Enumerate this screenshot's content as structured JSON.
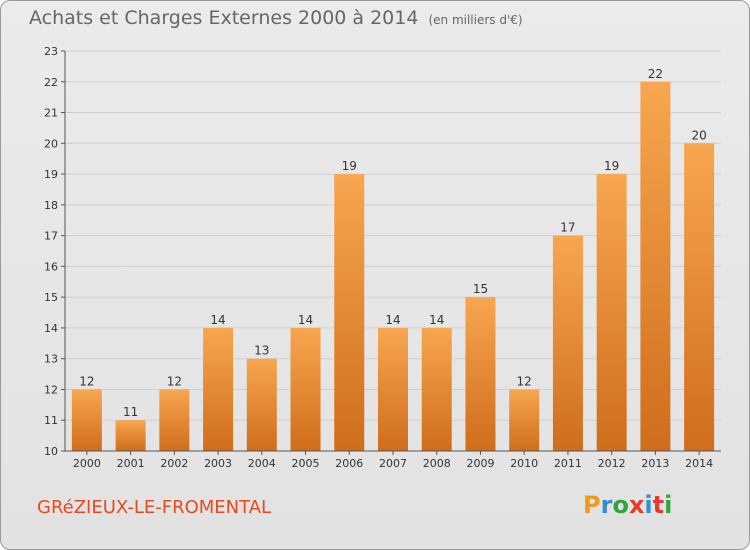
{
  "chart_data": {
    "type": "bar",
    "title": "Achats et Charges Externes 2000 à 2014",
    "unit": "(en milliers d'€)",
    "categories": [
      "2000",
      "2001",
      "2002",
      "2003",
      "2004",
      "2005",
      "2006",
      "2007",
      "2008",
      "2009",
      "2010",
      "2011",
      "2012",
      "2013",
      "2014"
    ],
    "values": [
      12,
      11,
      12,
      14,
      13,
      14,
      19,
      14,
      14,
      15,
      12,
      17,
      19,
      22,
      20
    ],
    "ylim": [
      10,
      23
    ],
    "yticks": [
      10,
      11,
      12,
      13,
      14,
      15,
      16,
      17,
      18,
      19,
      20,
      21,
      22,
      23
    ],
    "grid": true,
    "bar_color_top": "#f8a650",
    "bar_color_bottom": "#cf6d1b"
  },
  "footer": {
    "city": "GRéZIEUX-LE-FROMENTAL",
    "logo": "Proxiti",
    "logo_colors": [
      "#f09a1a",
      "#2f8fd0",
      "#2fa63a",
      "#e8392a",
      "#2f8fd0",
      "#e8392a",
      "#2fa63a"
    ]
  }
}
